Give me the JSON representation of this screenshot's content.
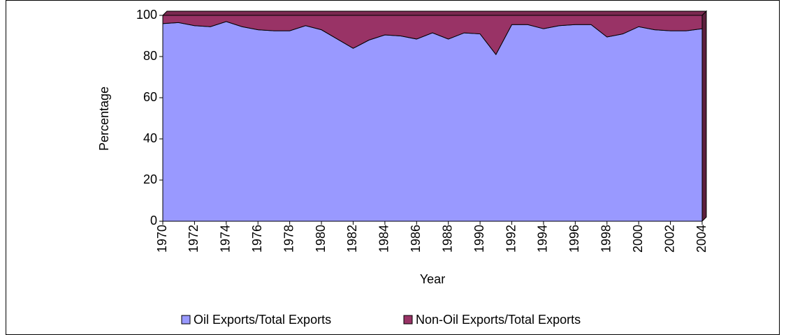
{
  "chart_data": {
    "type": "stacked-area",
    "x_label": "Year",
    "y_label": "Percentage",
    "x": [
      1970,
      1971,
      1972,
      1973,
      1974,
      1975,
      1976,
      1977,
      1978,
      1979,
      1980,
      1981,
      1982,
      1983,
      1984,
      1985,
      1986,
      1987,
      1988,
      1989,
      1990,
      1991,
      1992,
      1993,
      1994,
      1995,
      1996,
      1997,
      1998,
      1999,
      2000,
      2001,
      2002,
      2003,
      2004
    ],
    "series": [
      {
        "name": "Oil Exports/Total Exports",
        "color": "#9999ff",
        "values": [
          96,
          96.5,
          95,
          94.5,
          97,
          94.5,
          93,
          92.5,
          92.5,
          95,
          93,
          88.5,
          84,
          88,
          90.5,
          90,
          88.5,
          91.5,
          88.5,
          91.5,
          91,
          81,
          95.5,
          95.5,
          93.5,
          95,
          95.5,
          95.5,
          89.5,
          91,
          94.5,
          93,
          92.5,
          92.5,
          93.5
        ]
      },
      {
        "name": "Non-Oil Exports/Total Exports",
        "color": "#993366",
        "values": [
          4,
          3.5,
          5,
          5.5,
          3,
          5.5,
          7,
          7.5,
          7.5,
          5,
          7,
          11.5,
          16,
          12,
          9.5,
          10,
          11.5,
          8.5,
          11.5,
          8.5,
          9,
          19,
          4.5,
          4.5,
          6.5,
          5,
          4.5,
          4.5,
          10.5,
          9,
          5.5,
          7,
          7.5,
          7.5,
          6.5
        ]
      }
    ],
    "xlim": [
      1970,
      2004
    ],
    "xticks": [
      1970,
      1972,
      1974,
      1976,
      1978,
      1980,
      1982,
      1984,
      1986,
      1988,
      1990,
      1992,
      1994,
      1996,
      1998,
      2000,
      2002,
      2004
    ],
    "ylim": [
      0,
      100
    ],
    "yticks": [
      0,
      20,
      40,
      60,
      80,
      100
    ],
    "legend": "bottom"
  }
}
